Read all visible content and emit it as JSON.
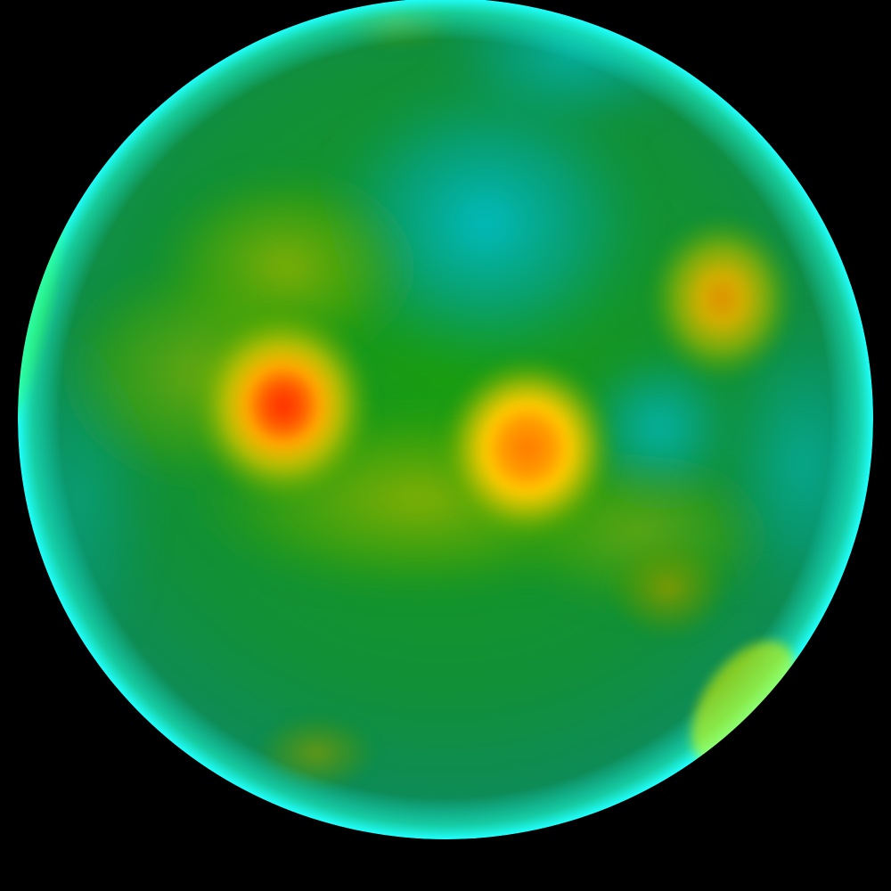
{
  "image": {
    "subject": "heatmap-sphere",
    "background_color": "#000000",
    "base_color": "#14a01e",
    "rim_color": "#1effff",
    "colormap": [
      "#00aacc",
      "#009933",
      "#22aa00",
      "#cccc00",
      "#ffaa00",
      "#ff2200"
    ],
    "hotspots": [
      {
        "name": "hotspot-left",
        "intensity": 1.0,
        "peak_color": "#ff2a00"
      },
      {
        "name": "hotspot-center",
        "intensity": 0.9,
        "peak_color": "#ff7a00"
      },
      {
        "name": "hotspot-right",
        "intensity": 0.65,
        "peak_color": "#e89a00"
      },
      {
        "name": "hotspot-lower-right",
        "intensity": 0.35,
        "peak_color": "#9a9e00"
      },
      {
        "name": "hotspot-bottom",
        "intensity": 0.25,
        "peak_color": "#4a8a00"
      },
      {
        "name": "hotspot-top",
        "intensity": 0.2,
        "peak_color": "#3c8e00"
      }
    ],
    "cool_regions": [
      {
        "name": "cool-region-top-center",
        "peak_color": "#00b8c8"
      },
      {
        "name": "cool-region-right",
        "peak_color": "#08a8a8"
      }
    ]
  }
}
